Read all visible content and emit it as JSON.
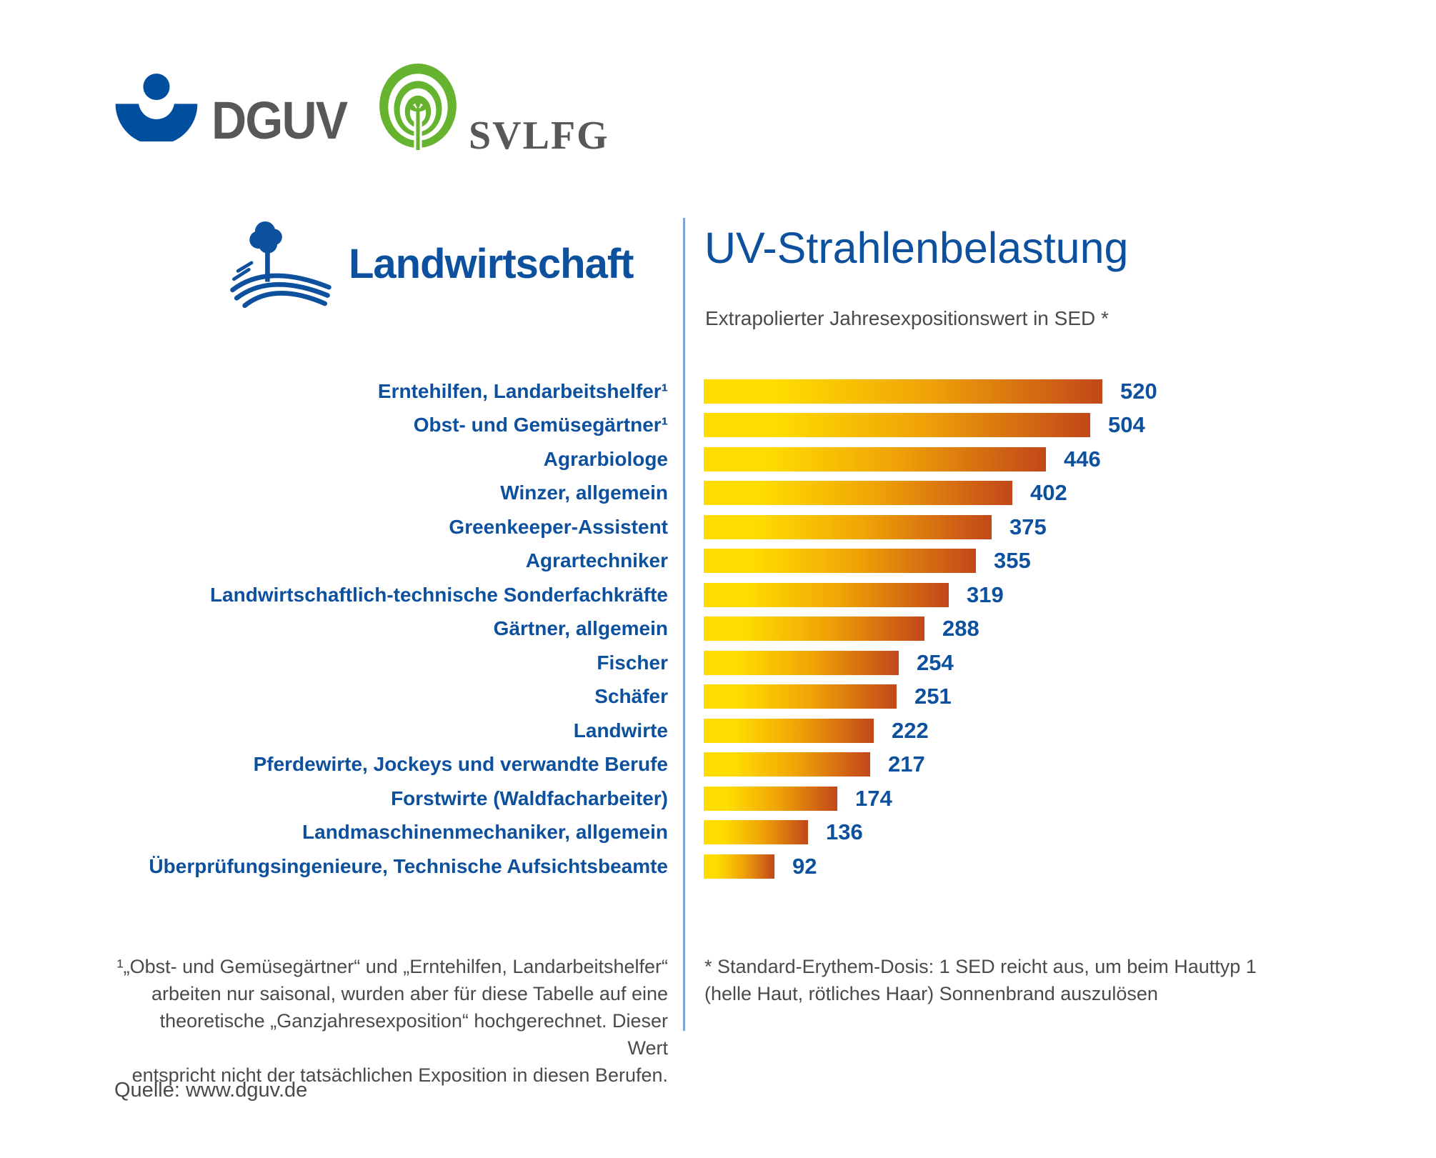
{
  "brand": {
    "dguv_label": "DGUV",
    "svlfg_label": "SVLFG"
  },
  "header": {
    "section_title": "Landwirtschaft",
    "chart_title": "UV-Strahlenbelastung",
    "subtitle": "Extrapolierter Jahresexpositionswert in SED *"
  },
  "chart_data": {
    "type": "bar",
    "orientation": "horizontal",
    "title": "UV-Strahlenbelastung",
    "subtitle": "Extrapolierter Jahresexpositionswert in SED *",
    "unit": "SED",
    "xlim": [
      0,
      560
    ],
    "grid": false,
    "legend": false,
    "categories": [
      "Erntehilfen, Landarbeitshelfer¹",
      "Obst- und Gemüsegärtner¹",
      "Agrarbiologe",
      "Winzer, allgemein",
      "Greenkeeper-Assistent",
      "Agrartechniker",
      "Landwirtschaftlich-technische Sonderfachkräfte",
      "Gärtner, allgemein",
      "Fischer",
      "Schäfer",
      "Landwirte",
      "Pferdewirte, Jockeys und verwandte Berufe",
      "Forstwirte (Waldfacharbeiter)",
      "Landmaschinenmechaniker, allgemein",
      "Überprüfungsingenieure, Technische Aufsichtsbeamte"
    ],
    "values": [
      520,
      504,
      446,
      402,
      375,
      355,
      319,
      288,
      254,
      251,
      222,
      217,
      174,
      136,
      92
    ]
  },
  "footnotes": {
    "left_text": "¹„Obst- und Gemüsegärtner“ und „Erntehilfen, Landarbeitshelfer“\narbeiten nur saisonal, wurden aber für diese Tabelle auf eine\ntheoretische „Ganzjahresexposition“ hochgerechnet. Dieser Wert\nentspricht nicht der tatsächlichen Exposition in diesen Berufen.",
    "right_text": "* Standard-Erythem-Dosis: 1 SED reicht aus, um beim Hauttyp 1\n(helle Haut, rötliches Haar) Sonnenbrand auszulösen",
    "source": "Quelle: www.dguv.de"
  },
  "colors": {
    "blue": "#0D509E",
    "gray_brand": "#58585A",
    "gray_text": "#4A4A4C",
    "green": "#65B32E",
    "divider": "#7FA6D2",
    "bar_gradient_start": "#FFDD00",
    "bar_gradient_mid": "#F0A306",
    "bar_gradient_end": "#C2471A"
  }
}
